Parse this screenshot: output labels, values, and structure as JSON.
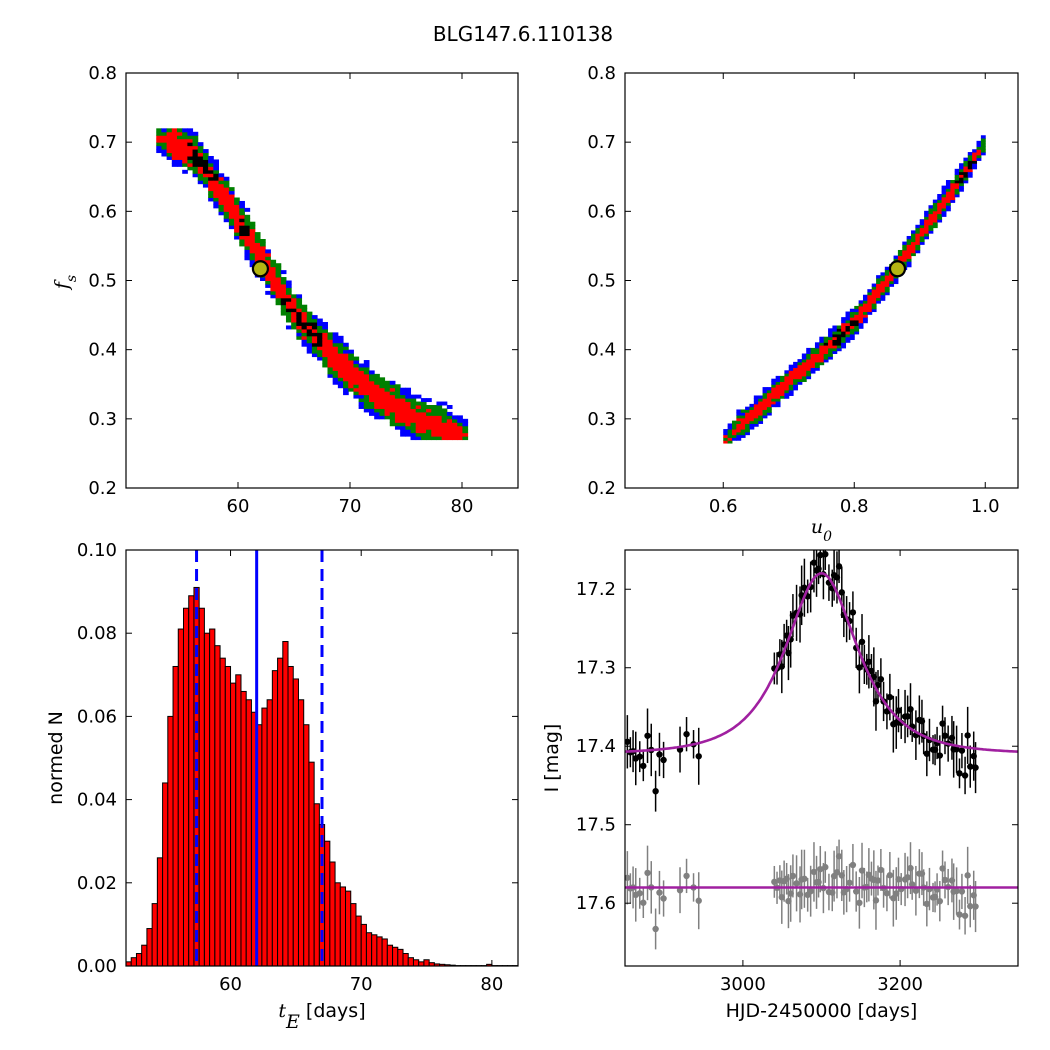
{
  "figure": {
    "title": "BLG147.6.110138"
  },
  "chart_data": [
    {
      "id": "fs-vs-tE",
      "type": "heatmap",
      "xlim": [
        50,
        85
      ],
      "ylim": [
        0.2,
        0.8
      ],
      "xticks": [
        60,
        70,
        80
      ],
      "yticks": [
        0.2,
        0.3,
        0.4,
        0.5,
        0.6,
        0.7,
        0.8
      ],
      "xlabel": "",
      "ylabel": "f_s",
      "ylabel_main": "f",
      "ylabel_sub": "s",
      "confidence_colors": [
        "#0000ff",
        "#008000",
        "#ff0000",
        "#000000"
      ],
      "best_fit": {
        "x": 62.0,
        "y": 0.517
      },
      "region_center_line": [
        [
          52.7,
          0.71
        ],
        [
          56.0,
          0.685
        ],
        [
          58.8,
          0.62
        ],
        [
          62.0,
          0.535
        ],
        [
          65.0,
          0.455
        ],
        [
          68.5,
          0.39
        ],
        [
          72.0,
          0.34
        ],
        [
          76.0,
          0.3
        ],
        [
          80.5,
          0.275
        ]
      ],
      "region_half_widths": {
        "blue": 0.032,
        "green": 0.026,
        "red": 0.016
      }
    },
    {
      "id": "fs-vs-u0",
      "type": "heatmap",
      "xlim": [
        0.45,
        1.05
      ],
      "ylim": [
        0.2,
        0.8
      ],
      "xticks": [
        0.6,
        0.8,
        1.0
      ],
      "yticks": [
        0.2,
        0.3,
        0.4,
        0.5,
        0.6,
        0.7,
        0.8
      ],
      "xlabel": "u_0",
      "xlabel_main": "u",
      "xlabel_sub": "0",
      "ylabel": "",
      "confidence_colors": [
        "#0000ff",
        "#008000",
        "#ff0000",
        "#000000"
      ],
      "best_fit": {
        "x": 0.866,
        "y": 0.517
      },
      "region_center_line": [
        [
          0.6,
          0.27
        ],
        [
          0.65,
          0.31
        ],
        [
          0.7,
          0.355
        ],
        [
          0.75,
          0.395
        ],
        [
          0.8,
          0.44
        ],
        [
          0.85,
          0.5
        ],
        [
          0.9,
          0.565
        ],
        [
          0.95,
          0.63
        ],
        [
          1.0,
          0.7
        ]
      ],
      "region_half_widths": {
        "blue": 0.02,
        "green": 0.015,
        "red": 0.009
      }
    },
    {
      "id": "tE-histogram",
      "type": "bar",
      "xlim": [
        52,
        82
      ],
      "ylim": [
        0,
        0.1
      ],
      "xticks": [
        60,
        70,
        80
      ],
      "yticks": [
        0.0,
        0.02,
        0.04,
        0.06,
        0.08,
        0.1
      ],
      "xlabel_main": "t",
      "xlabel_sub": "E",
      "xlabel_unit": " [days]",
      "ylabel": "normed N",
      "bin_start": 52.0,
      "bin_width": 0.4,
      "bar_color": "#ff0000",
      "values": [
        0.001,
        0.002,
        0.003,
        0.005,
        0.009,
        0.015,
        0.026,
        0.044,
        0.06,
        0.072,
        0.081,
        0.086,
        0.089,
        0.091,
        0.086,
        0.08,
        0.081,
        0.077,
        0.074,
        0.072,
        0.068,
        0.07,
        0.066,
        0.064,
        0.061,
        0.058,
        0.062,
        0.064,
        0.071,
        0.074,
        0.078,
        0.072,
        0.069,
        0.064,
        0.058,
        0.049,
        0.039,
        0.034,
        0.03,
        0.025,
        0.02,
        0.019,
        0.018,
        0.015,
        0.012,
        0.01,
        0.008,
        0.0075,
        0.007,
        0.0065,
        0.005,
        0.0045,
        0.004,
        0.003,
        0.002,
        0.0015,
        0.001,
        0.0015,
        0.0008,
        0.0005,
        0.0004,
        0.0003,
        0.0002,
        0.0001,
        0.0001,
        0.0001,
        0.0001,
        0.0001,
        0.0001,
        0.0004,
        0.0001,
        0.0001,
        0.0001,
        0.0001,
        0.0001
      ],
      "median": 62.0,
      "lower_bound": 57.4,
      "upper_bound": 67.0,
      "line_color": "#0000ff"
    },
    {
      "id": "light-curve",
      "type": "scatter",
      "xlim": [
        2850,
        3350
      ],
      "ylim": [
        17.68,
        17.15
      ],
      "xticks": [
        3000,
        3200
      ],
      "yticks": [
        17.2,
        17.3,
        17.4,
        17.5,
        17.6
      ],
      "xlabel": "HJD-2450000 [days]",
      "ylabel": "I [mag]",
      "model": {
        "t0": 3100,
        "tE": 62.0,
        "u0": 0.866,
        "fs": 0.517,
        "baseline": 17.41,
        "residual_offset": 17.58
      },
      "data_color": "#000000",
      "residual_color": "#808080",
      "model_color": "#a020a0"
    }
  ]
}
